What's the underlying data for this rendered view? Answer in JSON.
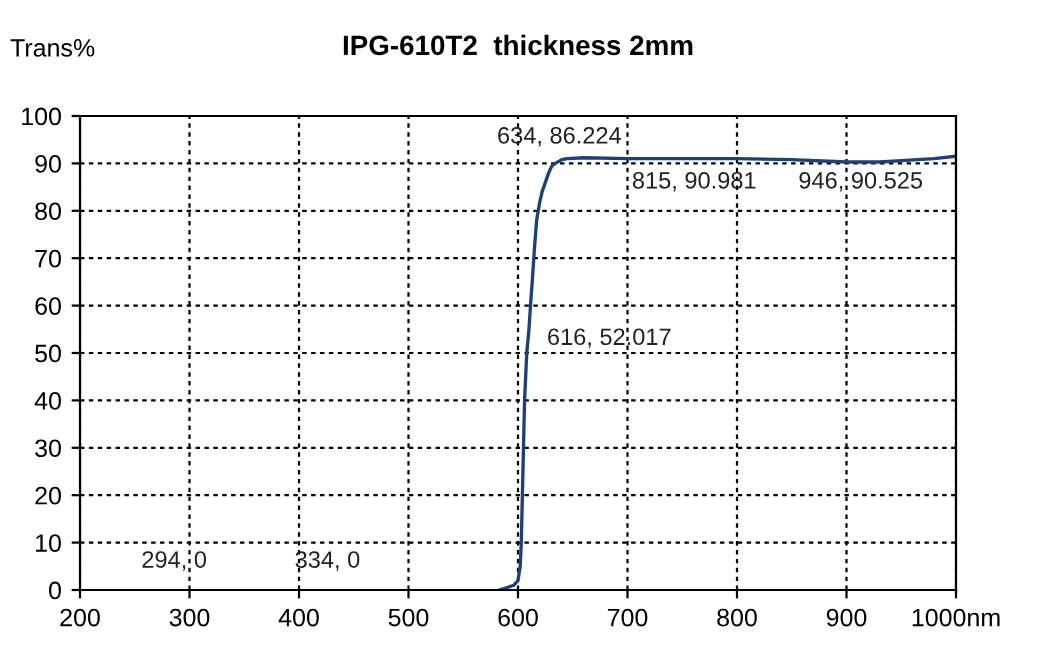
{
  "chart_data": {
    "type": "line",
    "title": "IPG-610T2  thickness 2mm",
    "ylabel": "Trans%",
    "x": [
      583,
      590,
      596,
      600,
      602,
      603,
      604,
      605,
      606,
      608,
      610,
      612,
      613,
      615,
      617,
      620,
      622,
      625,
      628,
      631,
      634,
      640,
      645,
      660,
      700,
      750,
      800,
      850,
      900,
      930,
      950,
      980,
      1000
    ],
    "series": [
      {
        "color": "#1f3f7a",
        "values": [
          0,
          0.5,
          1,
          2,
          5,
          10,
          20,
          30,
          40,
          50,
          55,
          62,
          65,
          72,
          78,
          82,
          84,
          86,
          88,
          89.5,
          90,
          90.8,
          91,
          91.2,
          91,
          91,
          91,
          90.8,
          90.3,
          90.3,
          90.6,
          91,
          91.5
        ]
      }
    ],
    "xlim": [
      200,
      1000
    ],
    "xticks": [
      200,
      300,
      400,
      500,
      600,
      700,
      800,
      900,
      {
        "value": 1000,
        "label": "1000nm"
      }
    ],
    "ylim": [
      0,
      100
    ],
    "yticks": [
      0,
      10,
      20,
      30,
      40,
      50,
      60,
      70,
      80,
      90,
      100
    ],
    "grid": true,
    "line_style": "solid",
    "marker": "none",
    "annotations": [
      "634, 86.224",
      "815, 90.981",
      "946, 90.525",
      "616, 52.017",
      "294, 0",
      "334, 0"
    ]
  }
}
